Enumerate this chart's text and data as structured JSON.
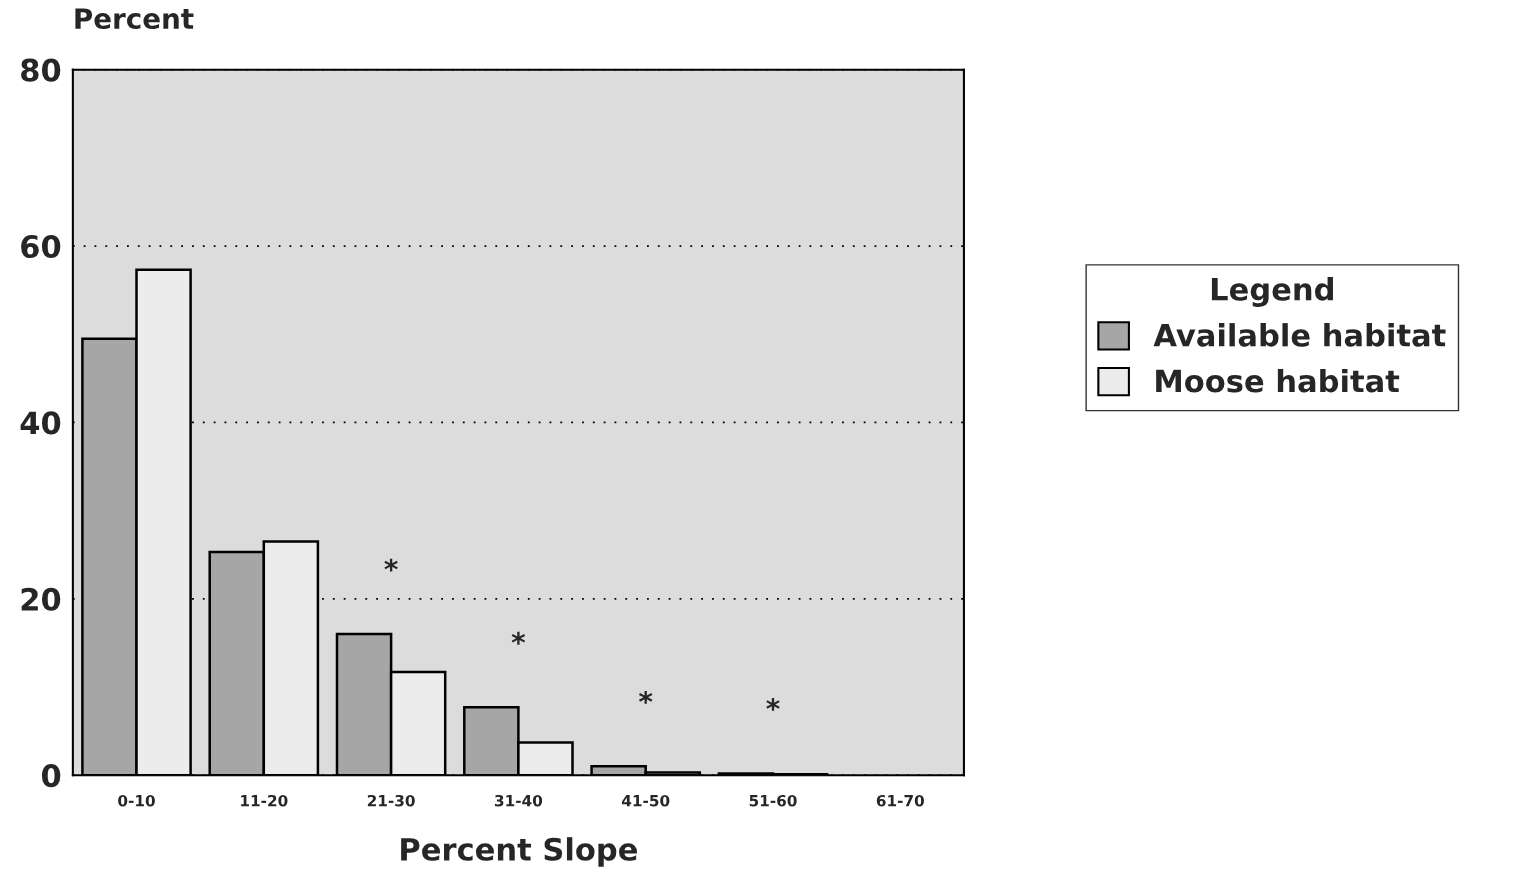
{
  "chart_data": {
    "type": "bar",
    "xlabel": "Percent Slope",
    "ylabel": "Percent",
    "legend_title": "Legend",
    "categories": [
      "0-10",
      "11-20",
      "21-30",
      "31-40",
      "41-50",
      "51-60",
      "61-70"
    ],
    "series": [
      {
        "name": "Available habitat",
        "color": "#a6a6a6",
        "values": [
          49.5,
          25.3,
          16.0,
          7.7,
          1.0,
          0.2,
          0
        ]
      },
      {
        "name": "Moose habitat",
        "color": "#ececec",
        "values": [
          57.3,
          26.5,
          11.7,
          3.7,
          0.3,
          0.1,
          0
        ]
      }
    ],
    "ylim": [
      0,
      80
    ],
    "yticks": [
      0,
      20,
      40,
      60,
      80
    ],
    "grid": "y",
    "legend": "right",
    "annotations": [
      "*",
      "*",
      "*",
      "*"
    ]
  }
}
